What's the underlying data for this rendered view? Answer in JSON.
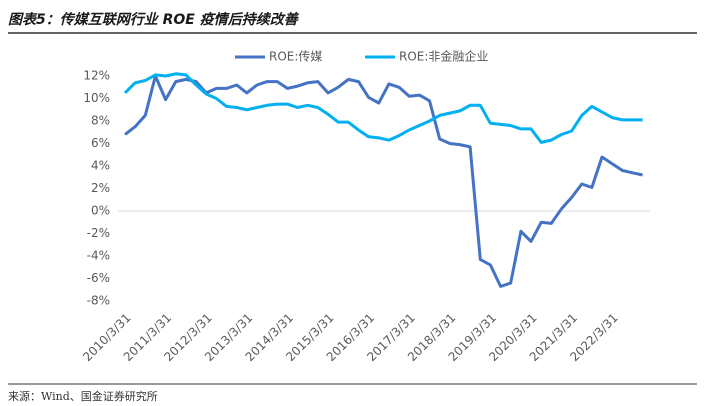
{
  "chart_data": {
    "type": "line",
    "title": "图表5：传媒互联网行业 ROE 疫情后持续改善",
    "source": "来源：Wind、国金证券研究所",
    "categories": [
      "2010/3/31",
      null,
      null,
      null,
      "2011/3/31",
      null,
      null,
      null,
      "2012/3/31",
      null,
      null,
      null,
      "2013/3/31",
      null,
      null,
      null,
      "2014/3/31",
      null,
      null,
      null,
      "2015/3/31",
      null,
      null,
      null,
      "2016/3/31",
      null,
      null,
      null,
      "2017/3/31",
      null,
      null,
      null,
      "2018/3/31",
      null,
      null,
      null,
      "2019/3/31",
      null,
      null,
      null,
      "2020/3/31",
      null,
      null,
      null,
      "2021/3/31",
      null,
      null,
      null,
      "2022/3/31",
      null,
      null,
      null
    ],
    "series": [
      {
        "name": "ROE:传媒",
        "color": "#4472c4",
        "values": [
          6.8,
          7.5,
          8.5,
          12.0,
          9.9,
          11.5,
          11.7,
          11.5,
          10.5,
          10.9,
          10.9,
          11.2,
          10.5,
          11.2,
          11.5,
          11.5,
          10.9,
          11.1,
          11.4,
          11.5,
          10.5,
          11.0,
          11.7,
          11.5,
          10.1,
          9.6,
          11.3,
          11.0,
          10.2,
          10.3,
          9.8,
          6.4,
          6.0,
          5.9,
          5.7,
          -4.3,
          -4.8,
          -6.7,
          -6.4,
          -1.8,
          -2.7,
          -1.0,
          -1.1,
          0.2,
          1.2,
          2.4,
          2.1,
          4.8,
          4.2,
          3.6,
          3.4,
          3.2
        ]
      },
      {
        "name": "ROE:非金融企业",
        "color": "#00b0f0",
        "values": [
          10.5,
          11.4,
          11.6,
          12.1,
          12.0,
          12.2,
          12.1,
          11.2,
          10.4,
          10.0,
          9.3,
          9.2,
          9.0,
          9.2,
          9.4,
          9.5,
          9.5,
          9.2,
          9.4,
          9.2,
          8.6,
          7.9,
          7.9,
          7.2,
          6.6,
          6.5,
          6.3,
          6.7,
          7.2,
          7.6,
          8.0,
          8.5,
          8.7,
          8.9,
          9.4,
          9.4,
          7.8,
          7.7,
          7.6,
          7.3,
          7.3,
          6.1,
          6.3,
          6.8,
          7.1,
          8.5,
          9.3,
          8.8,
          8.3,
          8.1,
          8.1,
          8.1
        ]
      }
    ],
    "ylim": [
      -8,
      12
    ],
    "yticks": [
      {
        "value": -8,
        "label": "-8%"
      },
      {
        "value": -6,
        "label": "-6%"
      },
      {
        "value": -4,
        "label": "-4%"
      },
      {
        "value": -2,
        "label": "-2%"
      },
      {
        "value": 0,
        "label": "0%"
      },
      {
        "value": 2,
        "label": "2%"
      },
      {
        "value": 4,
        "label": "4%"
      },
      {
        "value": 6,
        "label": "6%"
      },
      {
        "value": 8,
        "label": "8%"
      },
      {
        "value": 10,
        "label": "10%"
      },
      {
        "value": 12,
        "label": "12%"
      }
    ],
    "grid": false,
    "legend": "top"
  }
}
